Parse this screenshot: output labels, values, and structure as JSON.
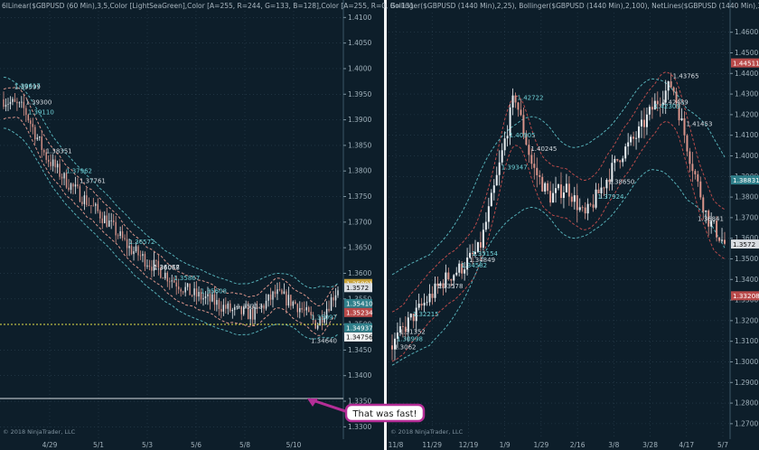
{
  "colors": {
    "background": "#0d1e2a",
    "divider": "#f4f6f8",
    "band_cyan": "#55aeb6",
    "band_red": "#b84a4a",
    "candle_up": "#e9eef2",
    "candle_down": "#d9948a",
    "grid": "#2c4150",
    "callout": "#b52e97"
  },
  "left_panel": {
    "header": "6lLinear($GBPUSD (60 Min),3,5,Color [LightSeaGreen],Color [A=255, R=244, G=133, B=128],Color [A=255, R=0, G=131",
    "copyright": "© 2018 NinjaTrader, LLC",
    "callout_text": "That was fast!",
    "price_boxes": [
      "1.35801",
      "1.3572",
      "1.35410",
      "1.35234",
      "1.34937",
      "1.34756"
    ]
  },
  "right_panel": {
    "header": "Bollinger($GBPUSD (1440 Min),2,25), Bollinger($GBPUSD (1440 Min),2,100), NetLines($GBPUSD (1440 Min),3,5,Colo",
    "copyright": "© 2018 NinjaTrader, LLC",
    "price_boxes": [
      "1.44511",
      "1.38831",
      "1.3572",
      "1.33208"
    ]
  },
  "chart_data": [
    {
      "type": "line",
      "title": "GBPUSD (60 Min)",
      "series": [
        {
          "name": "GBPUSD",
          "values": [
            1.394,
            1.392,
            1.383,
            1.378,
            1.374,
            1.37,
            1.365,
            1.362,
            1.359,
            1.356,
            1.3545,
            1.3525,
            1.352,
            1.356,
            1.354,
            1.35,
            1.3572
          ]
        }
      ],
      "x_tick_labels": [
        "4/29",
        "5/1",
        "5/3",
        "5/6",
        "5/8",
        "5/10"
      ],
      "y_tick_labels": [
        "1.4100",
        "1.4050",
        "1.4000",
        "1.3950",
        "1.3900",
        "1.3850",
        "1.3800",
        "1.3750",
        "1.3700",
        "1.3650",
        "1.3600",
        "1.3550",
        "1.3500",
        "1.3450",
        "1.3400",
        "1.3350",
        "1.3300"
      ],
      "ylim": [
        1.329,
        1.412
      ],
      "annotation_labels": [
        "1.39599",
        "1.39617",
        "1.39300",
        "1.39110",
        "1.38351",
        "1.37962",
        "1.37761",
        "1.36572",
        "1.36077",
        "1.35867",
        "1.35313",
        "1.35097",
        "1.34640",
        "1.35608",
        "1.36068"
      ]
    },
    {
      "type": "line",
      "title": "GBPUSD (1440 Min)",
      "series": [
        {
          "name": "GBPUSD",
          "values": [
            1.308,
            1.32,
            1.33,
            1.34,
            1.346,
            1.355,
            1.39,
            1.43,
            1.395,
            1.38,
            1.385,
            1.37,
            1.385,
            1.4,
            1.41,
            1.425,
            1.435,
            1.4,
            1.37,
            1.3572
          ]
        }
      ],
      "x_tick_labels": [
        "11/8",
        "11/29",
        "12/19",
        "1/9",
        "1/29",
        "2/16",
        "3/8",
        "3/28",
        "4/17",
        "5/7"
      ],
      "y_tick_labels": [
        "1.4600",
        "1.4500",
        "1.4400",
        "1.4300",
        "1.4200",
        "1.4100",
        "1.4000",
        "1.3900",
        "1.3800",
        "1.3700",
        "1.3600",
        "1.3500",
        "1.3400",
        "1.3300",
        "1.3200",
        "1.3100",
        "1.3000",
        "1.2900",
        "1.2800",
        "1.2700"
      ],
      "ylim": [
        1.266,
        1.466
      ],
      "annotation_labels": [
        "1.43765",
        "1.42722",
        "1.42489",
        "1.42309",
        "1.41453",
        "1.40905",
        "1.40245",
        "1.39347",
        "1.38650",
        "1.37924",
        "1.36841",
        "1.35154",
        "1.34849",
        "1.34582",
        "1.33578",
        "1.32215",
        "1.31352",
        "1.30998",
        "1.3062"
      ]
    }
  ]
}
